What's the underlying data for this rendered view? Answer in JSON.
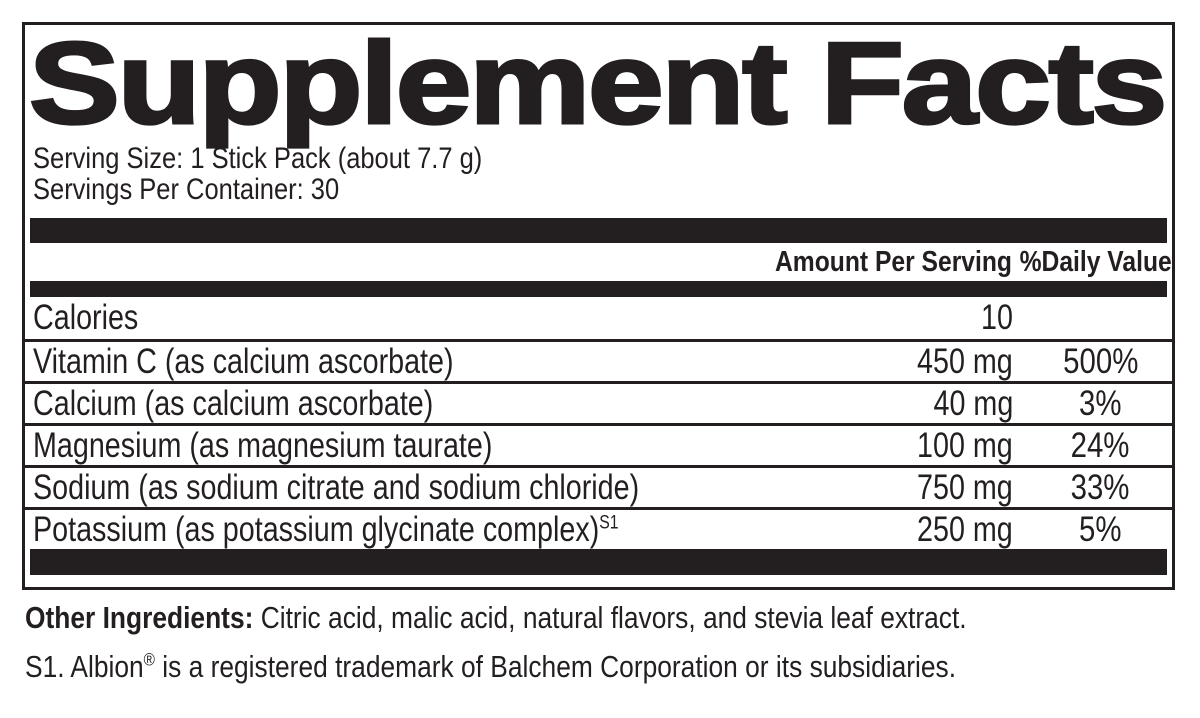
{
  "colors": {
    "ink": "#231f20",
    "background": "#ffffff"
  },
  "label": {
    "title": "Supplement Facts",
    "serving_size": "Serving Size: 1 Stick Pack (about 7.7 g)",
    "servings_per_container": "Servings Per Container: 30",
    "columns": {
      "amount": "Amount Per Serving",
      "daily_value": "%Daily Value"
    },
    "rows": [
      {
        "name": "Calories",
        "amount": "10"
      },
      {
        "name": "Vitamin C (as calcium ascorbate)",
        "amount": "450 mg",
        "dv": "500%"
      },
      {
        "name": "Calcium (as calcium ascorbate)",
        "amount": "40 mg",
        "dv": "3%"
      },
      {
        "name": "Magnesium (as magnesium taurate)",
        "amount": "100 mg",
        "dv": "24%"
      },
      {
        "name": "Sodium (as sodium citrate and sodium chloride)",
        "amount": "750 mg",
        "dv": "33%"
      },
      {
        "name": "Potassium (as potassium glycinate complex)",
        "name_superscript": "S1",
        "amount": "250 mg",
        "dv": "5%"
      }
    ],
    "other_ingredients": {
      "label": "Other Ingredients:",
      "text": " Citric acid, malic acid, natural flavors, and stevia leaf extract."
    },
    "footnote": {
      "prefix": "S1. Albion",
      "registered": "®",
      "suffix": " is a registered trademark of Balchem Corporation or its subsidiaries."
    }
  }
}
